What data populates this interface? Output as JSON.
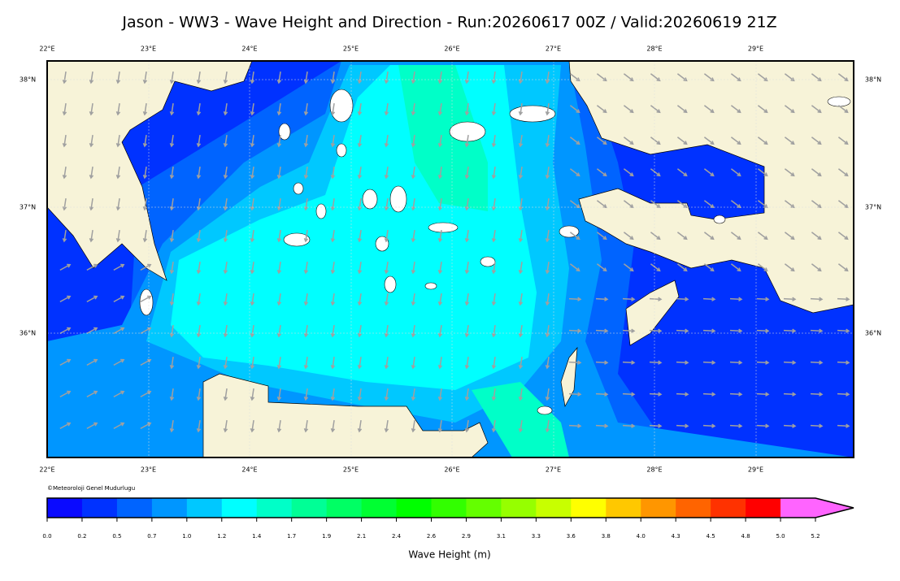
{
  "title": "Jason - WW3 - Wave Height and Direction - Run:20260617 00Z / Valid:20260619 21Z",
  "longitude_labels": [
    "22°E",
    "23°E",
    "24°E",
    "25°E",
    "26°E",
    "27°E",
    "28°E",
    "29°E"
  ],
  "latitude_labels": [
    "38°N",
    "37°N",
    "36°N"
  ],
  "credit": "©Meteoroloji Genel Mudurlugu",
  "colorbar": {
    "label": "Wave Height (m)",
    "ticks": [
      "0.0",
      "0.2",
      "0.5",
      "0.7",
      "1.0",
      "1.2",
      "1.4",
      "1.7",
      "1.9",
      "2.1",
      "2.4",
      "2.6",
      "2.9",
      "3.1",
      "3.3",
      "3.6",
      "3.8",
      "4.0",
      "4.3",
      "4.5",
      "4.8",
      "5.0",
      "5.2"
    ],
    "colors": [
      "#0a0aff",
      "#0032ff",
      "#0064ff",
      "#0096ff",
      "#00c8ff",
      "#00ffff",
      "#00ffc8",
      "#00ff96",
      "#00ff64",
      "#00ff32",
      "#00ff00",
      "#32ff00",
      "#64ff00",
      "#96ff00",
      "#c8ff00",
      "#ffff00",
      "#ffc800",
      "#ff9600",
      "#ff6400",
      "#ff3200",
      "#ff0000",
      "#ff64ff"
    ]
  }
}
